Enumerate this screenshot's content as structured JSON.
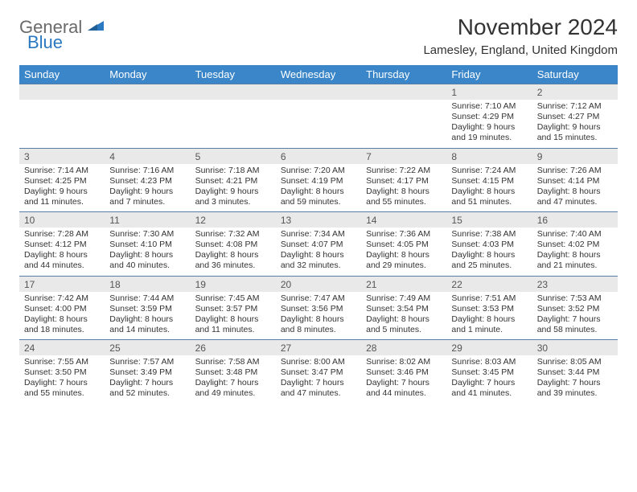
{
  "brand": {
    "word1": "General",
    "word2": "Blue",
    "word1_color": "#6a6a6a",
    "word2_color": "#2a78bf",
    "shape_color": "#2a78bf"
  },
  "title": "November 2024",
  "location": "Lamesley, England, United Kingdom",
  "header_bg": "#3a86c8",
  "header_fg": "#ffffff",
  "daynum_bg": "#e9e9e9",
  "daynum_fg": "#555555",
  "rule_color": "#5a7ea3",
  "days_of_week": [
    "Sunday",
    "Monday",
    "Tuesday",
    "Wednesday",
    "Thursday",
    "Friday",
    "Saturday"
  ],
  "weeks": [
    [
      null,
      null,
      null,
      null,
      null,
      {
        "n": "1",
        "sunrise": "7:10 AM",
        "sunset": "4:29 PM",
        "daylight": "9 hours and 19 minutes."
      },
      {
        "n": "2",
        "sunrise": "7:12 AM",
        "sunset": "4:27 PM",
        "daylight": "9 hours and 15 minutes."
      }
    ],
    [
      {
        "n": "3",
        "sunrise": "7:14 AM",
        "sunset": "4:25 PM",
        "daylight": "9 hours and 11 minutes."
      },
      {
        "n": "4",
        "sunrise": "7:16 AM",
        "sunset": "4:23 PM",
        "daylight": "9 hours and 7 minutes."
      },
      {
        "n": "5",
        "sunrise": "7:18 AM",
        "sunset": "4:21 PM",
        "daylight": "9 hours and 3 minutes."
      },
      {
        "n": "6",
        "sunrise": "7:20 AM",
        "sunset": "4:19 PM",
        "daylight": "8 hours and 59 minutes."
      },
      {
        "n": "7",
        "sunrise": "7:22 AM",
        "sunset": "4:17 PM",
        "daylight": "8 hours and 55 minutes."
      },
      {
        "n": "8",
        "sunrise": "7:24 AM",
        "sunset": "4:15 PM",
        "daylight": "8 hours and 51 minutes."
      },
      {
        "n": "9",
        "sunrise": "7:26 AM",
        "sunset": "4:14 PM",
        "daylight": "8 hours and 47 minutes."
      }
    ],
    [
      {
        "n": "10",
        "sunrise": "7:28 AM",
        "sunset": "4:12 PM",
        "daylight": "8 hours and 44 minutes."
      },
      {
        "n": "11",
        "sunrise": "7:30 AM",
        "sunset": "4:10 PM",
        "daylight": "8 hours and 40 minutes."
      },
      {
        "n": "12",
        "sunrise": "7:32 AM",
        "sunset": "4:08 PM",
        "daylight": "8 hours and 36 minutes."
      },
      {
        "n": "13",
        "sunrise": "7:34 AM",
        "sunset": "4:07 PM",
        "daylight": "8 hours and 32 minutes."
      },
      {
        "n": "14",
        "sunrise": "7:36 AM",
        "sunset": "4:05 PM",
        "daylight": "8 hours and 29 minutes."
      },
      {
        "n": "15",
        "sunrise": "7:38 AM",
        "sunset": "4:03 PM",
        "daylight": "8 hours and 25 minutes."
      },
      {
        "n": "16",
        "sunrise": "7:40 AM",
        "sunset": "4:02 PM",
        "daylight": "8 hours and 21 minutes."
      }
    ],
    [
      {
        "n": "17",
        "sunrise": "7:42 AM",
        "sunset": "4:00 PM",
        "daylight": "8 hours and 18 minutes."
      },
      {
        "n": "18",
        "sunrise": "7:44 AM",
        "sunset": "3:59 PM",
        "daylight": "8 hours and 14 minutes."
      },
      {
        "n": "19",
        "sunrise": "7:45 AM",
        "sunset": "3:57 PM",
        "daylight": "8 hours and 11 minutes."
      },
      {
        "n": "20",
        "sunrise": "7:47 AM",
        "sunset": "3:56 PM",
        "daylight": "8 hours and 8 minutes."
      },
      {
        "n": "21",
        "sunrise": "7:49 AM",
        "sunset": "3:54 PM",
        "daylight": "8 hours and 5 minutes."
      },
      {
        "n": "22",
        "sunrise": "7:51 AM",
        "sunset": "3:53 PM",
        "daylight": "8 hours and 1 minute."
      },
      {
        "n": "23",
        "sunrise": "7:53 AM",
        "sunset": "3:52 PM",
        "daylight": "7 hours and 58 minutes."
      }
    ],
    [
      {
        "n": "24",
        "sunrise": "7:55 AM",
        "sunset": "3:50 PM",
        "daylight": "7 hours and 55 minutes."
      },
      {
        "n": "25",
        "sunrise": "7:57 AM",
        "sunset": "3:49 PM",
        "daylight": "7 hours and 52 minutes."
      },
      {
        "n": "26",
        "sunrise": "7:58 AM",
        "sunset": "3:48 PM",
        "daylight": "7 hours and 49 minutes."
      },
      {
        "n": "27",
        "sunrise": "8:00 AM",
        "sunset": "3:47 PM",
        "daylight": "7 hours and 47 minutes."
      },
      {
        "n": "28",
        "sunrise": "8:02 AM",
        "sunset": "3:46 PM",
        "daylight": "7 hours and 44 minutes."
      },
      {
        "n": "29",
        "sunrise": "8:03 AM",
        "sunset": "3:45 PM",
        "daylight": "7 hours and 41 minutes."
      },
      {
        "n": "30",
        "sunrise": "8:05 AM",
        "sunset": "3:44 PM",
        "daylight": "7 hours and 39 minutes."
      }
    ]
  ],
  "labels": {
    "sunrise": "Sunrise: ",
    "sunset": "Sunset: ",
    "daylight": "Daylight: "
  }
}
